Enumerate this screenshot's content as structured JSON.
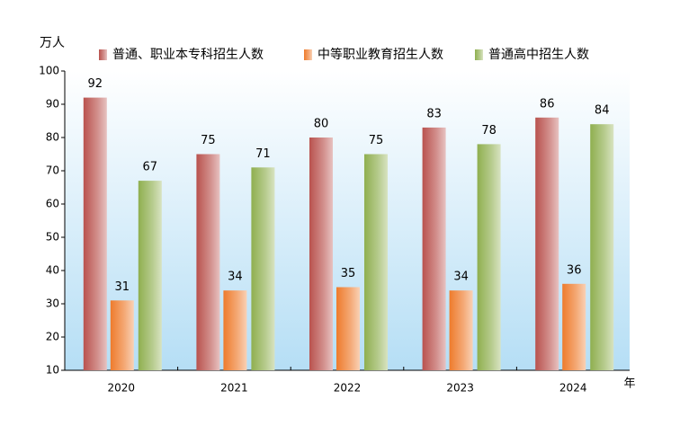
{
  "chart_data": {
    "type": "bar",
    "y_label": "万人",
    "x_label": "年",
    "categories": [
      "2020",
      "2021",
      "2022",
      "2023",
      "2024"
    ],
    "series": [
      {
        "name": "普通、职业本专科招生人数",
        "color": "#b9524e",
        "values": [
          92,
          75,
          80,
          83,
          86
        ]
      },
      {
        "name": "中等职业教育招生人数",
        "color": "#ee7b2c",
        "values": [
          31,
          34,
          35,
          34,
          36
        ]
      },
      {
        "name": "普通高中招生人数",
        "color": "#8faf4f",
        "values": [
          67,
          71,
          75,
          78,
          84
        ]
      }
    ],
    "ylim": [
      10,
      100
    ],
    "yticks": [
      10,
      20,
      30,
      40,
      50,
      60,
      70,
      80,
      90,
      100
    ]
  }
}
